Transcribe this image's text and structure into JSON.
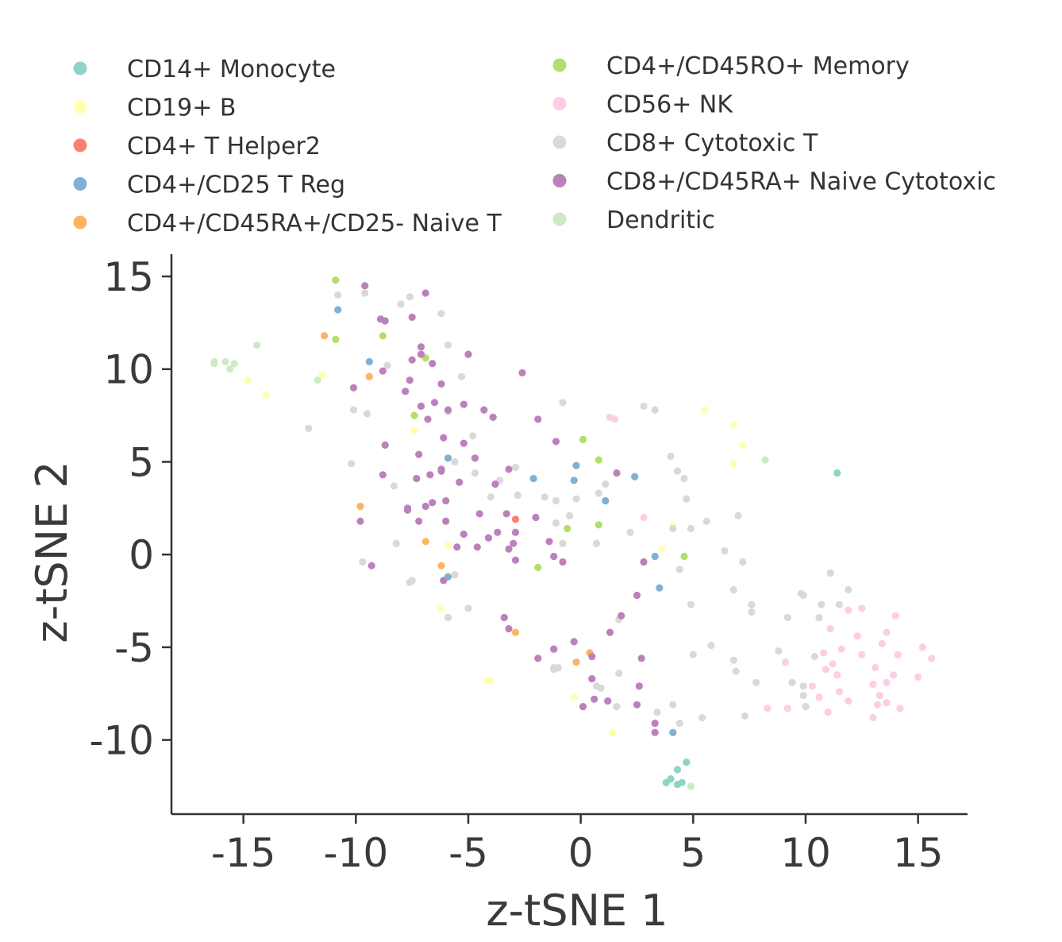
{
  "chart_data": {
    "type": "scatter",
    "title": "",
    "xlabel": "z-tSNE 1",
    "ylabel": "z-tSNE 2",
    "xlim": [
      -18.2,
      17.2
    ],
    "ylim": [
      -14.0,
      16.2
    ],
    "xticks": [
      -15,
      -10,
      -5,
      0,
      5,
      10,
      15
    ],
    "yticks": [
      -10,
      -5,
      0,
      5,
      10,
      15
    ],
    "xtick_labels": [
      "-15",
      "-10",
      "-5",
      "0",
      "5",
      "10",
      "15"
    ],
    "ytick_labels": [
      "-10",
      "-5",
      "0",
      "5",
      "10",
      "15"
    ],
    "grid": false,
    "legend_position": "top",
    "series": [
      {
        "name": "CD14+ Monocyte",
        "color": "#8dd3c7",
        "points": [
          [
            11.4,
            4.4
          ],
          [
            3.8,
            -12.3
          ],
          [
            4.0,
            -12.1
          ],
          [
            4.3,
            -11.6
          ],
          [
            4.7,
            -11.2
          ],
          [
            4.5,
            -12.3
          ],
          [
            4.3,
            -12.4
          ]
        ]
      },
      {
        "name": "CD19+ B",
        "color": "#ffffb3",
        "points": [
          [
            -14.8,
            9.4
          ],
          [
            -14.0,
            8.6
          ],
          [
            -11.5,
            9.7
          ],
          [
            -7.4,
            6.7
          ],
          [
            -5.9,
            0.5
          ],
          [
            -6.2,
            -2.9
          ],
          [
            -4.2,
            -6.8
          ],
          [
            -4.0,
            -6.8
          ],
          [
            -0.3,
            -7.7
          ],
          [
            1.4,
            -9.6
          ],
          [
            3.6,
            0.3
          ],
          [
            4.1,
            1.6
          ],
          [
            5.5,
            7.8
          ],
          [
            6.8,
            7.0
          ],
          [
            7.2,
            5.9
          ],
          [
            6.8,
            4.9
          ]
        ]
      },
      {
        "name": "CD4+ T Helper2",
        "color": "#fb8072",
        "points": [
          [
            -2.9,
            1.9
          ]
        ]
      },
      {
        "name": "CD4+/CD25 T Reg",
        "color": "#80b1d3",
        "points": [
          [
            -10.8,
            13.2
          ],
          [
            -9.4,
            10.4
          ],
          [
            -5.9,
            5.2
          ],
          [
            -2.1,
            4.1
          ],
          [
            -0.2,
            4.8
          ],
          [
            -0.3,
            4.0
          ],
          [
            1.1,
            2.9
          ],
          [
            2.4,
            4.2
          ],
          [
            3.3,
            -0.1
          ],
          [
            3.5,
            -1.8
          ],
          [
            -5.9,
            -1.2
          ],
          [
            4.1,
            -9.6
          ]
        ]
      },
      {
        "name": "CD4+/CD45RA+/CD25- Naive T",
        "color": "#fdb462",
        "points": [
          [
            -11.4,
            11.8
          ],
          [
            -9.4,
            9.6
          ],
          [
            -9.8,
            2.6
          ],
          [
            -6.9,
            0.7
          ],
          [
            -6.2,
            -0.6
          ],
          [
            -2.9,
            -4.2
          ],
          [
            -0.2,
            -5.8
          ],
          [
            0.4,
            -5.3
          ]
        ]
      },
      {
        "name": "CD4+/CD45RO+ Memory",
        "color": "#b3de69",
        "points": [
          [
            -10.9,
            14.8
          ],
          [
            -10.9,
            11.6
          ],
          [
            -8.8,
            11.8
          ],
          [
            -6.9,
            10.6
          ],
          [
            -7.4,
            7.5
          ],
          [
            0.1,
            6.2
          ],
          [
            0.8,
            5.1
          ],
          [
            -0.6,
            1.4
          ],
          [
            0.8,
            1.6
          ],
          [
            -1.9,
            -0.7
          ],
          [
            4.6,
            -0.1
          ]
        ]
      },
      {
        "name": "CD56+ NK",
        "color": "#fccde5",
        "points": [
          [
            1.3,
            7.4
          ],
          [
            1.5,
            7.3
          ],
          [
            2.8,
            2.0
          ],
          [
            8.3,
            -8.3
          ],
          [
            9.1,
            -5.8
          ],
          [
            9.2,
            -8.3
          ],
          [
            10.3,
            -7.1
          ],
          [
            10.6,
            -7.7
          ],
          [
            10.8,
            -5.3
          ],
          [
            10.9,
            -6.2
          ],
          [
            11.0,
            -8.5
          ],
          [
            11.2,
            -5.9
          ],
          [
            11.4,
            -6.5
          ],
          [
            11.1,
            -4.0
          ],
          [
            11.6,
            -5.1
          ],
          [
            11.9,
            -7.9
          ],
          [
            11.5,
            -7.4
          ],
          [
            11.9,
            -3.0
          ],
          [
            12.3,
            -4.4
          ],
          [
            12.5,
            -2.9
          ],
          [
            12.5,
            -5.4
          ],
          [
            13.0,
            -8.8
          ],
          [
            13.0,
            -7.0
          ],
          [
            13.1,
            -6.1
          ],
          [
            13.2,
            -8.1
          ],
          [
            13.3,
            -7.6
          ],
          [
            13.4,
            -4.8
          ],
          [
            13.6,
            -4.2
          ],
          [
            13.6,
            -6.9
          ],
          [
            13.6,
            -8.0
          ],
          [
            13.9,
            -6.5
          ],
          [
            14.0,
            -3.3
          ],
          [
            14.2,
            -8.3
          ],
          [
            14.1,
            -5.4
          ],
          [
            15.0,
            -6.6
          ],
          [
            15.2,
            -5.0
          ],
          [
            15.6,
            -5.6
          ]
        ]
      },
      {
        "name": "CD8+ Cytotoxic T",
        "color": "#d9d9d9",
        "points": [
          [
            -12.1,
            6.8
          ],
          [
            -10.8,
            14.0
          ],
          [
            -10.1,
            7.8
          ],
          [
            -10.2,
            4.9
          ],
          [
            -9.6,
            14.1
          ],
          [
            -9.5,
            7.6
          ],
          [
            -8.6,
            10.2
          ],
          [
            -8.3,
            3.7
          ],
          [
            -8.0,
            13.5
          ],
          [
            -7.6,
            13.9
          ],
          [
            -7.5,
            -1.4
          ],
          [
            -7.6,
            -1.5
          ],
          [
            -6.2,
            13.0
          ],
          [
            -5.9,
            11.3
          ],
          [
            -5.3,
            9.6
          ],
          [
            -5.9,
            7.7
          ],
          [
            -4.8,
            6.4
          ],
          [
            -5.6,
            5.0
          ],
          [
            -4.7,
            4.4
          ],
          [
            -4.0,
            3.1
          ],
          [
            -3.6,
            4.0
          ],
          [
            -2.9,
            4.7
          ],
          [
            -2.8,
            3.2
          ],
          [
            -1.6,
            3.1
          ],
          [
            -1.1,
            2.9
          ],
          [
            -1.1,
            1.7
          ],
          [
            -0.5,
            2.1
          ],
          [
            -0.2,
            3.0
          ],
          [
            -0.8,
            8.2
          ],
          [
            0.8,
            3.3
          ],
          [
            1.1,
            3.8
          ],
          [
            0.7,
            0.6
          ],
          [
            -0.8,
            0.6
          ],
          [
            2.2,
            1.2
          ],
          [
            2.8,
            8.0
          ],
          [
            3.3,
            7.8
          ],
          [
            4.0,
            5.3
          ],
          [
            4.3,
            4.5
          ],
          [
            4.6,
            4.1
          ],
          [
            4.7,
            3.0
          ],
          [
            4.1,
            1.4
          ],
          [
            4.4,
            -0.8
          ],
          [
            4.9,
            -2.7
          ],
          [
            5.0,
            -5.4
          ],
          [
            4.9,
            1.4
          ],
          [
            5.6,
            1.8
          ],
          [
            6.4,
            0.2
          ],
          [
            6.8,
            -1.9
          ],
          [
            7.0,
            2.1
          ],
          [
            7.2,
            -0.4
          ],
          [
            7.6,
            -2.7
          ],
          [
            7.6,
            -3.1
          ],
          [
            6.8,
            -5.7
          ],
          [
            6.9,
            -6.3
          ],
          [
            7.8,
            -6.9
          ],
          [
            7.3,
            -8.7
          ],
          [
            9.2,
            -3.4
          ],
          [
            8.8,
            -5.2
          ],
          [
            9.8,
            -2.1
          ],
          [
            9.9,
            -2.2
          ],
          [
            9.4,
            -6.9
          ],
          [
            9.9,
            -7.1
          ],
          [
            9.9,
            -7.6
          ],
          [
            10.0,
            -8.2
          ],
          [
            10.4,
            -5.5
          ],
          [
            10.6,
            -3.4
          ],
          [
            10.7,
            -2.7
          ],
          [
            11.1,
            -1.0
          ],
          [
            11.5,
            -2.7
          ],
          [
            11.9,
            -1.9
          ],
          [
            5.4,
            -8.8
          ],
          [
            5.8,
            -4.9
          ],
          [
            4.1,
            -8.1
          ],
          [
            4.4,
            -9.1
          ],
          [
            3.4,
            -8.5
          ],
          [
            1.8,
            -3.3
          ],
          [
            1.7,
            -3.5
          ],
          [
            1.6,
            -8.2
          ],
          [
            1.7,
            -6.4
          ],
          [
            0.9,
            -7.2
          ],
          [
            -1.0,
            -6.1
          ],
          [
            -1.2,
            -6.1
          ],
          [
            -1.2,
            -6.2
          ],
          [
            0.7,
            -7.1
          ],
          [
            -5.0,
            -2.9
          ],
          [
            -5.9,
            -3.4
          ],
          [
            -5.6,
            -1.1
          ],
          [
            -9.7,
            -0.4
          ],
          [
            -8.2,
            0.6
          ]
        ]
      },
      {
        "name": "CD8+/CD45RA+ Naive Cytotoxic",
        "color": "#bc80bd",
        "points": [
          [
            -9.6,
            14.5
          ],
          [
            -8.9,
            12.7
          ],
          [
            -8.7,
            12.6
          ],
          [
            -7.5,
            12.8
          ],
          [
            -6.9,
            14.1
          ],
          [
            -7.1,
            11.2
          ],
          [
            -7.1,
            10.8
          ],
          [
            -7.5,
            10.5
          ],
          [
            -6.6,
            10.3
          ],
          [
            -5.0,
            10.8
          ],
          [
            -8.8,
            9.9
          ],
          [
            -7.6,
            9.4
          ],
          [
            -6.2,
            9.2
          ],
          [
            -6.5,
            8.2
          ],
          [
            -5.9,
            7.8
          ],
          [
            -5.2,
            8.1
          ],
          [
            -4.3,
            7.8
          ],
          [
            -3.9,
            7.4
          ],
          [
            -2.6,
            9.8
          ],
          [
            -10.1,
            9.0
          ],
          [
            -7.8,
            8.8
          ],
          [
            -7.1,
            8.0
          ],
          [
            -6.8,
            7.3
          ],
          [
            -8.7,
            5.9
          ],
          [
            -7.2,
            5.4
          ],
          [
            -6.1,
            6.3
          ],
          [
            -5.2,
            6.0
          ],
          [
            -4.7,
            5.2
          ],
          [
            -6.2,
            4.6
          ],
          [
            -8.8,
            4.3
          ],
          [
            -7.3,
            4.1
          ],
          [
            -6.7,
            4.3
          ],
          [
            -6.2,
            4.5
          ],
          [
            -5.4,
            3.9
          ],
          [
            -3.8,
            3.8
          ],
          [
            -3.2,
            4.6
          ],
          [
            -1.9,
            7.3
          ],
          [
            -1.1,
            6.1
          ],
          [
            -7.7,
            2.4
          ],
          [
            -7.7,
            2.5
          ],
          [
            -6.9,
            2.6
          ],
          [
            -6.6,
            2.8
          ],
          [
            -6.0,
            2.9
          ],
          [
            -4.5,
            2.2
          ],
          [
            -3.3,
            2.2
          ],
          [
            -2.9,
            1.2
          ],
          [
            -2.0,
            2.0
          ],
          [
            -9.8,
            1.8
          ],
          [
            -7.2,
            1.8
          ],
          [
            -6.0,
            1.8
          ],
          [
            -5.2,
            1.1
          ],
          [
            -4.1,
            0.9
          ],
          [
            -3.7,
            1.2
          ],
          [
            -5.5,
            0.4
          ],
          [
            -4.6,
            0.4
          ],
          [
            -3.2,
            0.3
          ],
          [
            -3.0,
            0.6
          ],
          [
            -1.4,
            0.7
          ],
          [
            -2.9,
            -0.3
          ],
          [
            -1.2,
            -0.1
          ],
          [
            -0.8,
            -0.4
          ],
          [
            -9.3,
            -0.6
          ],
          [
            -6.1,
            -1.4
          ],
          [
            -3.4,
            -3.4
          ],
          [
            -3.2,
            -4.0
          ],
          [
            -1.9,
            -5.6
          ],
          [
            -1.2,
            -5.1
          ],
          [
            -0.3,
            -4.7
          ],
          [
            0.5,
            -5.5
          ],
          [
            1.3,
            -4.2
          ],
          [
            1.6,
            4.4
          ],
          [
            1.8,
            -3.3
          ],
          [
            2.5,
            -2.2
          ],
          [
            2.8,
            -0.4
          ],
          [
            2.7,
            -5.6
          ],
          [
            2.6,
            -7.1
          ],
          [
            0.5,
            -6.7
          ],
          [
            0.6,
            -7.8
          ],
          [
            0.1,
            -8.2
          ],
          [
            1.2,
            -7.9
          ],
          [
            2.5,
            -8.1
          ],
          [
            3.3,
            -9.1
          ],
          [
            3.3,
            -9.6
          ],
          [
            -1.2,
            -5.1
          ]
        ]
      },
      {
        "name": "Dendritic",
        "color": "#ccebc5",
        "points": [
          [
            -16.3,
            10.4
          ],
          [
            -16.3,
            10.3
          ],
          [
            -15.8,
            10.4
          ],
          [
            -15.6,
            10.0
          ],
          [
            -15.4,
            10.3
          ],
          [
            -14.4,
            11.3
          ],
          [
            -11.7,
            9.4
          ],
          [
            8.2,
            5.1
          ],
          [
            4.9,
            -12.5
          ]
        ]
      }
    ]
  }
}
